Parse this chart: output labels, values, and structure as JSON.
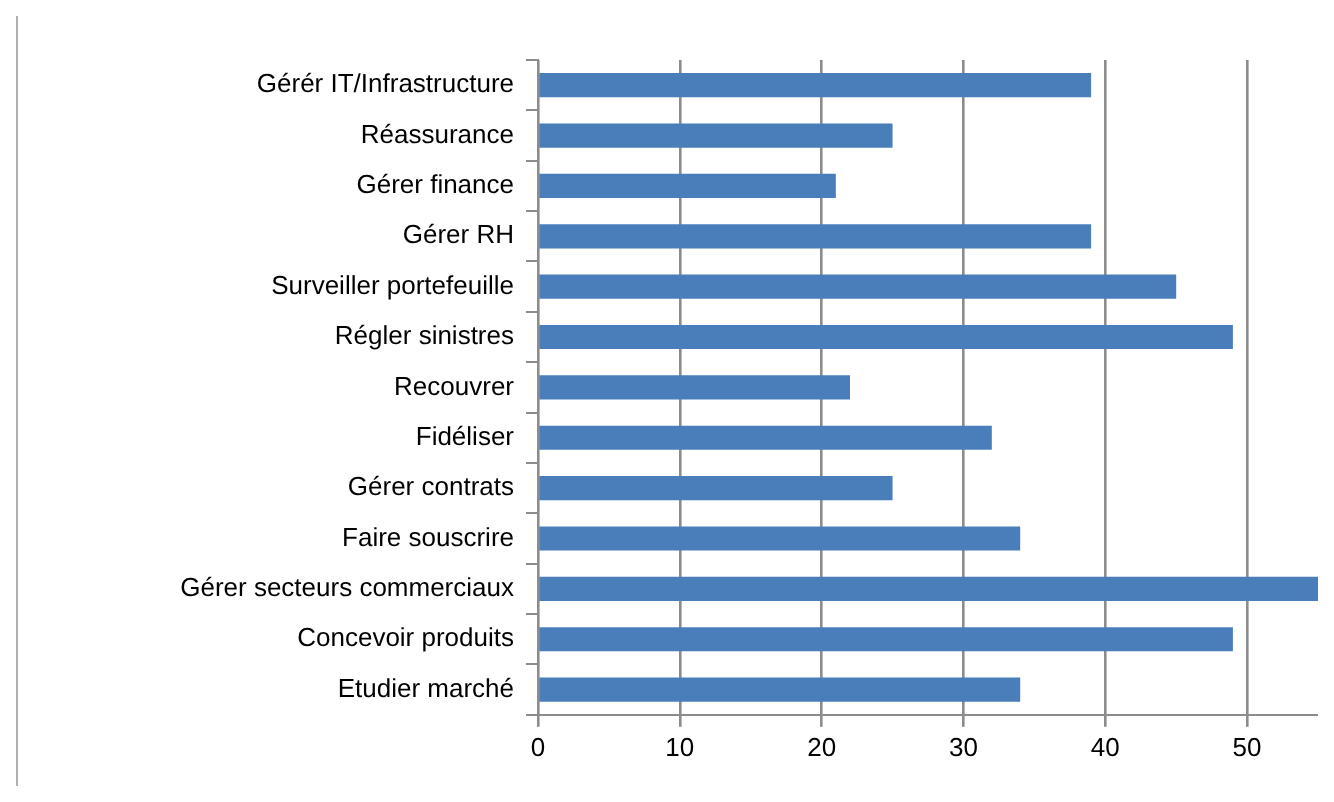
{
  "chart_data": {
    "type": "bar",
    "orientation": "horizontal",
    "categories": [
      "Gérér IT/Infrastructure",
      "Réassurance",
      "Gérer finance",
      "Gérer RH",
      "Surveiller portefeuille",
      "Régler sinistres",
      "Recouvrer",
      "Fidéliser",
      "Gérer contrats",
      "Faire souscrire",
      "Gérer secteurs commerciaux",
      "Concevoir produits",
      "Etudier marché"
    ],
    "values": [
      39,
      25,
      21,
      39,
      45,
      49,
      22,
      32,
      25,
      34,
      55,
      49,
      34
    ],
    "color": "#4a7ebb",
    "xlim": [
      0,
      55
    ],
    "xticks": [
      0,
      10,
      20,
      30,
      40,
      50
    ],
    "grid": "x",
    "legend": false
  }
}
